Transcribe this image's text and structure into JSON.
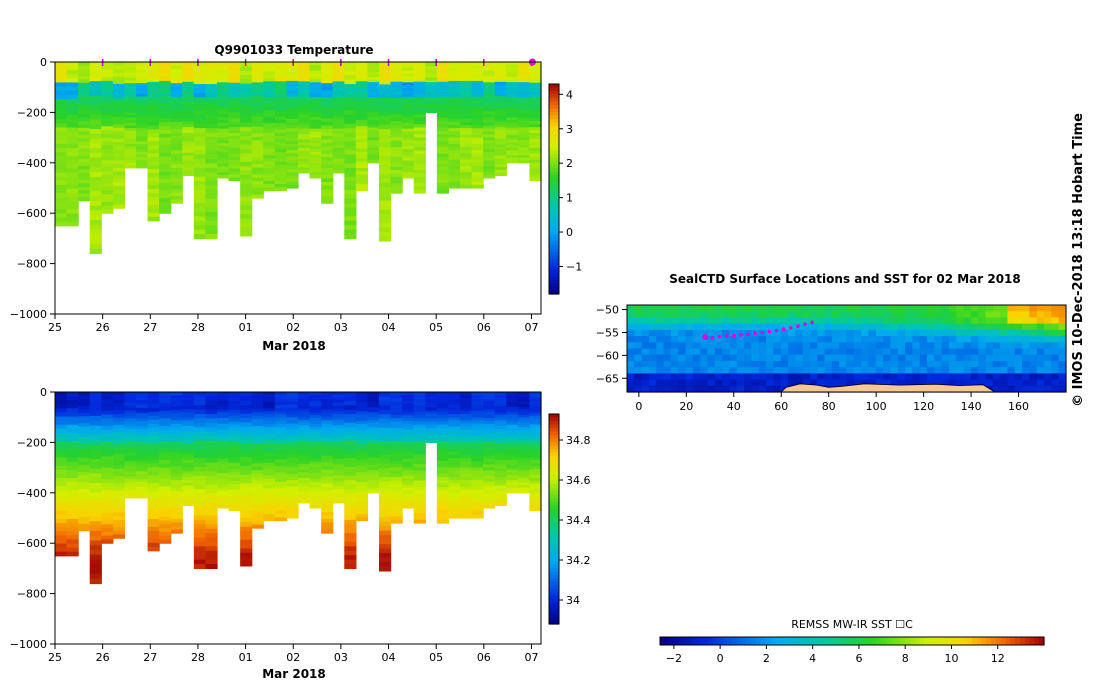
{
  "chart_data": [
    {
      "type": "heatmap",
      "title": "Q9901033  Temperature",
      "variable": "temperature",
      "xlabel": "Mar 2018",
      "x_ticks": [
        "25",
        "26",
        "27",
        "28",
        "01",
        "02",
        "03",
        "04",
        "05",
        "06",
        "07"
      ],
      "x_range_days": [
        0,
        10.2
      ],
      "ylim": [
        -1000,
        0
      ],
      "y_ticks": [
        "0",
        "−200",
        "−400",
        "−600",
        "−800",
        "−1000"
      ],
      "colorbar": {
        "range": [
          -1.8,
          4.3
        ],
        "ticks": [
          "4",
          "3",
          "2",
          "1",
          "0",
          "−1"
        ]
      },
      "profile_depths_m": [
        650,
        650,
        550,
        760,
        600,
        580,
        420,
        420,
        630,
        600,
        560,
        450,
        700,
        700,
        460,
        470,
        690,
        540,
        510,
        510,
        500,
        440,
        460,
        560,
        440,
        700,
        510,
        400,
        710,
        520,
        460,
        520,
        200,
        520,
        500,
        500,
        500,
        460,
        450,
        400,
        400,
        470
      ],
      "surface_markers_days": [
        1,
        2,
        3,
        4,
        5,
        6,
        7,
        8,
        9,
        10,
        10.02
      ]
    },
    {
      "type": "heatmap",
      "title": "",
      "variable": "salinity",
      "xlabel": "Mar 2018",
      "x_ticks": [
        "25",
        "26",
        "27",
        "28",
        "01",
        "02",
        "03",
        "04",
        "05",
        "06",
        "07"
      ],
      "x_range_days": [
        0,
        10.2
      ],
      "ylim": [
        -1000,
        0
      ],
      "y_ticks": [
        "0",
        "−200",
        "−400",
        "−600",
        "−800",
        "−1000"
      ],
      "colorbar": {
        "range": [
          33.88,
          34.93
        ],
        "ticks": [
          "34.8",
          "34.6",
          "34.4",
          "34.2",
          "34"
        ]
      }
    },
    {
      "type": "heatmap",
      "title": "SealCTD Surface Locations and SST for 02 Mar 2018",
      "xlim": [
        -5,
        180
      ],
      "x_ticks": [
        "0",
        "20",
        "40",
        "60",
        "80",
        "100",
        "120",
        "140",
        "160"
      ],
      "ylim": [
        -68,
        -49
      ],
      "y_ticks": [
        "−50",
        "−55",
        "−60",
        "−65"
      ],
      "track_lon": [
        28,
        31,
        34,
        37,
        40,
        43,
        46,
        49,
        52,
        55,
        58,
        61,
        64,
        67,
        70,
        73
      ],
      "track_lat": [
        -56,
        -56.2,
        -55.9,
        -55.8,
        -55.7,
        -55.5,
        -55.4,
        -55.2,
        -55,
        -54.8,
        -54.6,
        -54.3,
        -54,
        -53.6,
        -53.2,
        -52.8
      ],
      "colorbar": {
        "label": "REMSS MW-IR SST ☐C",
        "range": [
          -2.6,
          14
        ],
        "ticks": [
          "−2",
          "0",
          "2",
          "4",
          "6",
          "8",
          "10",
          "12"
        ]
      }
    }
  ],
  "watermark": "©  IMOS 10-Dec-2018 13:18 Hobart Time"
}
